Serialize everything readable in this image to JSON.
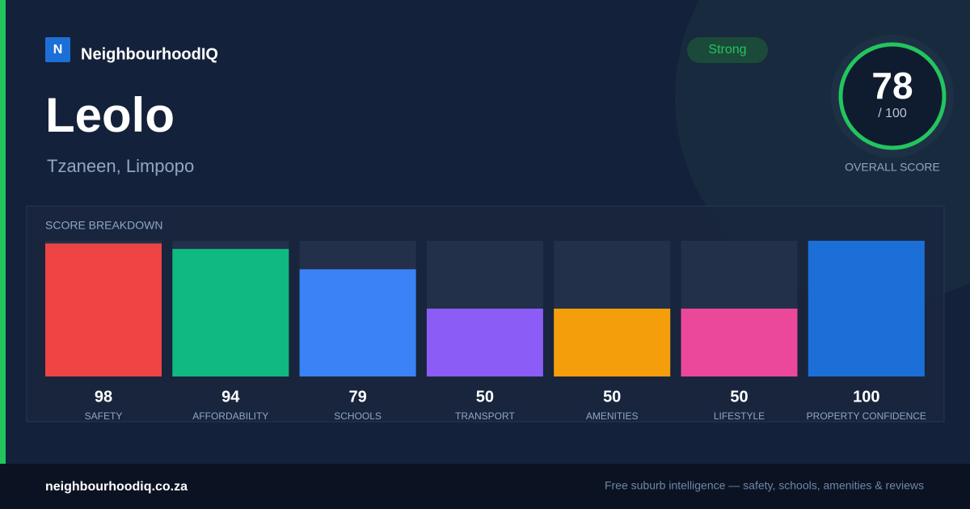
{
  "brand": {
    "logo": "N",
    "name": "NeighbourhoodIQ"
  },
  "suburb": "Leolo",
  "location": "Tzaneen, Limpopo",
  "badge": "Strong",
  "overall": {
    "score": "78",
    "max_label": "/ 100",
    "label": "OVERALL SCORE"
  },
  "chart_data": {
    "type": "bar",
    "title": "SCORE BREAKDOWN",
    "categories": [
      "SAFETY",
      "AFFORDABILITY",
      "SCHOOLS",
      "TRANSPORT",
      "AMENITIES",
      "LIFESTYLE",
      "PROPERTY CONFIDENCE"
    ],
    "values": [
      98,
      94,
      79,
      50,
      50,
      50,
      100
    ],
    "colors": [
      "#ef4444",
      "#10b981",
      "#3b82f6",
      "#8b5cf6",
      "#f59e0b",
      "#ec4899",
      "#1d6fd8"
    ],
    "ylim": [
      0,
      100
    ]
  },
  "footer": {
    "site": "neighbourhoodiq.co.za",
    "tagline": "Free suburb intelligence — safety, schools, amenities & reviews"
  }
}
